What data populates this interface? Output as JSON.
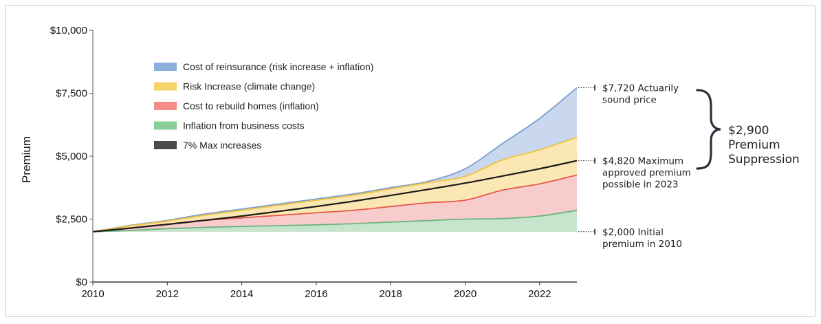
{
  "chart_data": {
    "type": "area",
    "ylabel": "Premium",
    "ylim": [
      0,
      10000
    ],
    "xlim": [
      2010,
      2023
    ],
    "x_ticks": [
      2010,
      2012,
      2014,
      2016,
      2018,
      2020,
      2022
    ],
    "x_tick_labels": [
      "2010",
      "2012",
      "2014",
      "2016",
      "2018",
      "2020",
      "2022"
    ],
    "y_ticks": [
      0,
      2500,
      5000,
      7500,
      10000
    ],
    "y_tick_labels": [
      "$0",
      "$2,500",
      "$5,000",
      "$7,500",
      "$10,000"
    ],
    "base": 2000,
    "x": [
      2010,
      2011,
      2012,
      2013,
      2014,
      2015,
      2016,
      2017,
      2018,
      2019,
      2020,
      2021,
      2022,
      2023
    ],
    "series": [
      {
        "name": "Cost of reinsurance (risk increase + inflation)",
        "color": "#c9d7ef",
        "line_color": "#7b9fcf",
        "values": [
          2000,
          2250,
          2450,
          2700,
          2900,
          3100,
          3300,
          3500,
          3750,
          4000,
          4500,
          5500,
          6500,
          7720
        ]
      },
      {
        "name": "Risk Increase (climate change)",
        "color": "#fbe7b3",
        "line_color": "#f0c33c",
        "values": [
          2000,
          2230,
          2420,
          2650,
          2850,
          3050,
          3250,
          3450,
          3700,
          3950,
          4200,
          4850,
          5250,
          5750
        ]
      },
      {
        "name": "Cost to rebuild homes (inflation)",
        "color": "#f8cccc",
        "line_color": "#e8574a",
        "values": [
          2000,
          2150,
          2300,
          2450,
          2550,
          2650,
          2750,
          2850,
          3000,
          3150,
          3250,
          3650,
          3900,
          4250
        ]
      },
      {
        "name": "Inflation from business costs",
        "color": "#c5e5cc",
        "line_color": "#6bb37b",
        "values": [
          2000,
          2050,
          2120,
          2170,
          2210,
          2240,
          2270,
          2320,
          2380,
          2440,
          2500,
          2520,
          2620,
          2850
        ]
      },
      {
        "name": "7% Max increases",
        "color": "#4a4a4a",
        "line_color": "#1a1a1a",
        "values": [
          2000,
          2140,
          2290,
          2450,
          2620,
          2810,
          3000,
          3210,
          3440,
          3680,
          3930,
          4210,
          4500,
          4820
        ]
      }
    ],
    "legend_position": "upper-left inside plot",
    "annotations": [
      {
        "value": 7720,
        "lines": [
          "$7,720 Actuarily",
          "sound price"
        ]
      },
      {
        "value": 4820,
        "lines": [
          "$4,820 Maximum",
          "approved premium",
          "possible in 2023"
        ]
      },
      {
        "value": 2000,
        "lines": [
          "$2,000 Initial",
          "premium in 2010"
        ]
      }
    ],
    "bracket_label": [
      "$2,900",
      "Premium",
      "Suppression"
    ],
    "grid": false
  }
}
